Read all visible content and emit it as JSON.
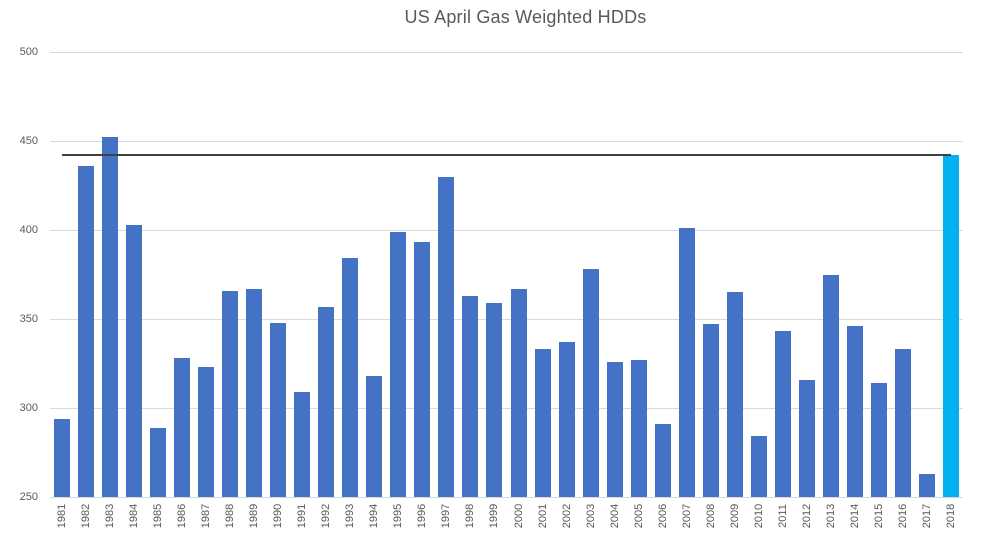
{
  "colors": {
    "bar": "#4472C4",
    "highlight_bar": "#00B0F0",
    "gridline": "#D9D9D9",
    "reference_line": "#404040",
    "axis_text": "#595959",
    "title_text": "#595959",
    "background": "#FFFFFF"
  },
  "chart_data": {
    "type": "bar",
    "title": "US April Gas Weighted HDDs",
    "categories": [
      "1981",
      "1982",
      "1983",
      "1984",
      "1985",
      "1986",
      "1987",
      "1988",
      "1989",
      "1990",
      "1991",
      "1992",
      "1993",
      "1994",
      "1995",
      "1996",
      "1997",
      "1998",
      "1999",
      "2000",
      "2001",
      "2002",
      "2003",
      "2004",
      "2005",
      "2006",
      "2007",
      "2008",
      "2009",
      "2010",
      "2011",
      "2012",
      "2013",
      "2014",
      "2015",
      "2016",
      "2017",
      "2018"
    ],
    "values": [
      294,
      436,
      452,
      403,
      289,
      328,
      323,
      366,
      367,
      348,
      309,
      357,
      384,
      318,
      399,
      393,
      430,
      363,
      359,
      367,
      333,
      337,
      378,
      326,
      327,
      291,
      401,
      347,
      365,
      284,
      343,
      316,
      375,
      346,
      314,
      333,
      263,
      442
    ],
    "highlight_category": "2018",
    "reference_line": {
      "value": 442
    },
    "ylim": [
      250,
      500
    ],
    "yticks": [
      250,
      300,
      350,
      400,
      450,
      500
    ],
    "grid": true,
    "legend": false,
    "xlabel": "",
    "ylabel": ""
  }
}
